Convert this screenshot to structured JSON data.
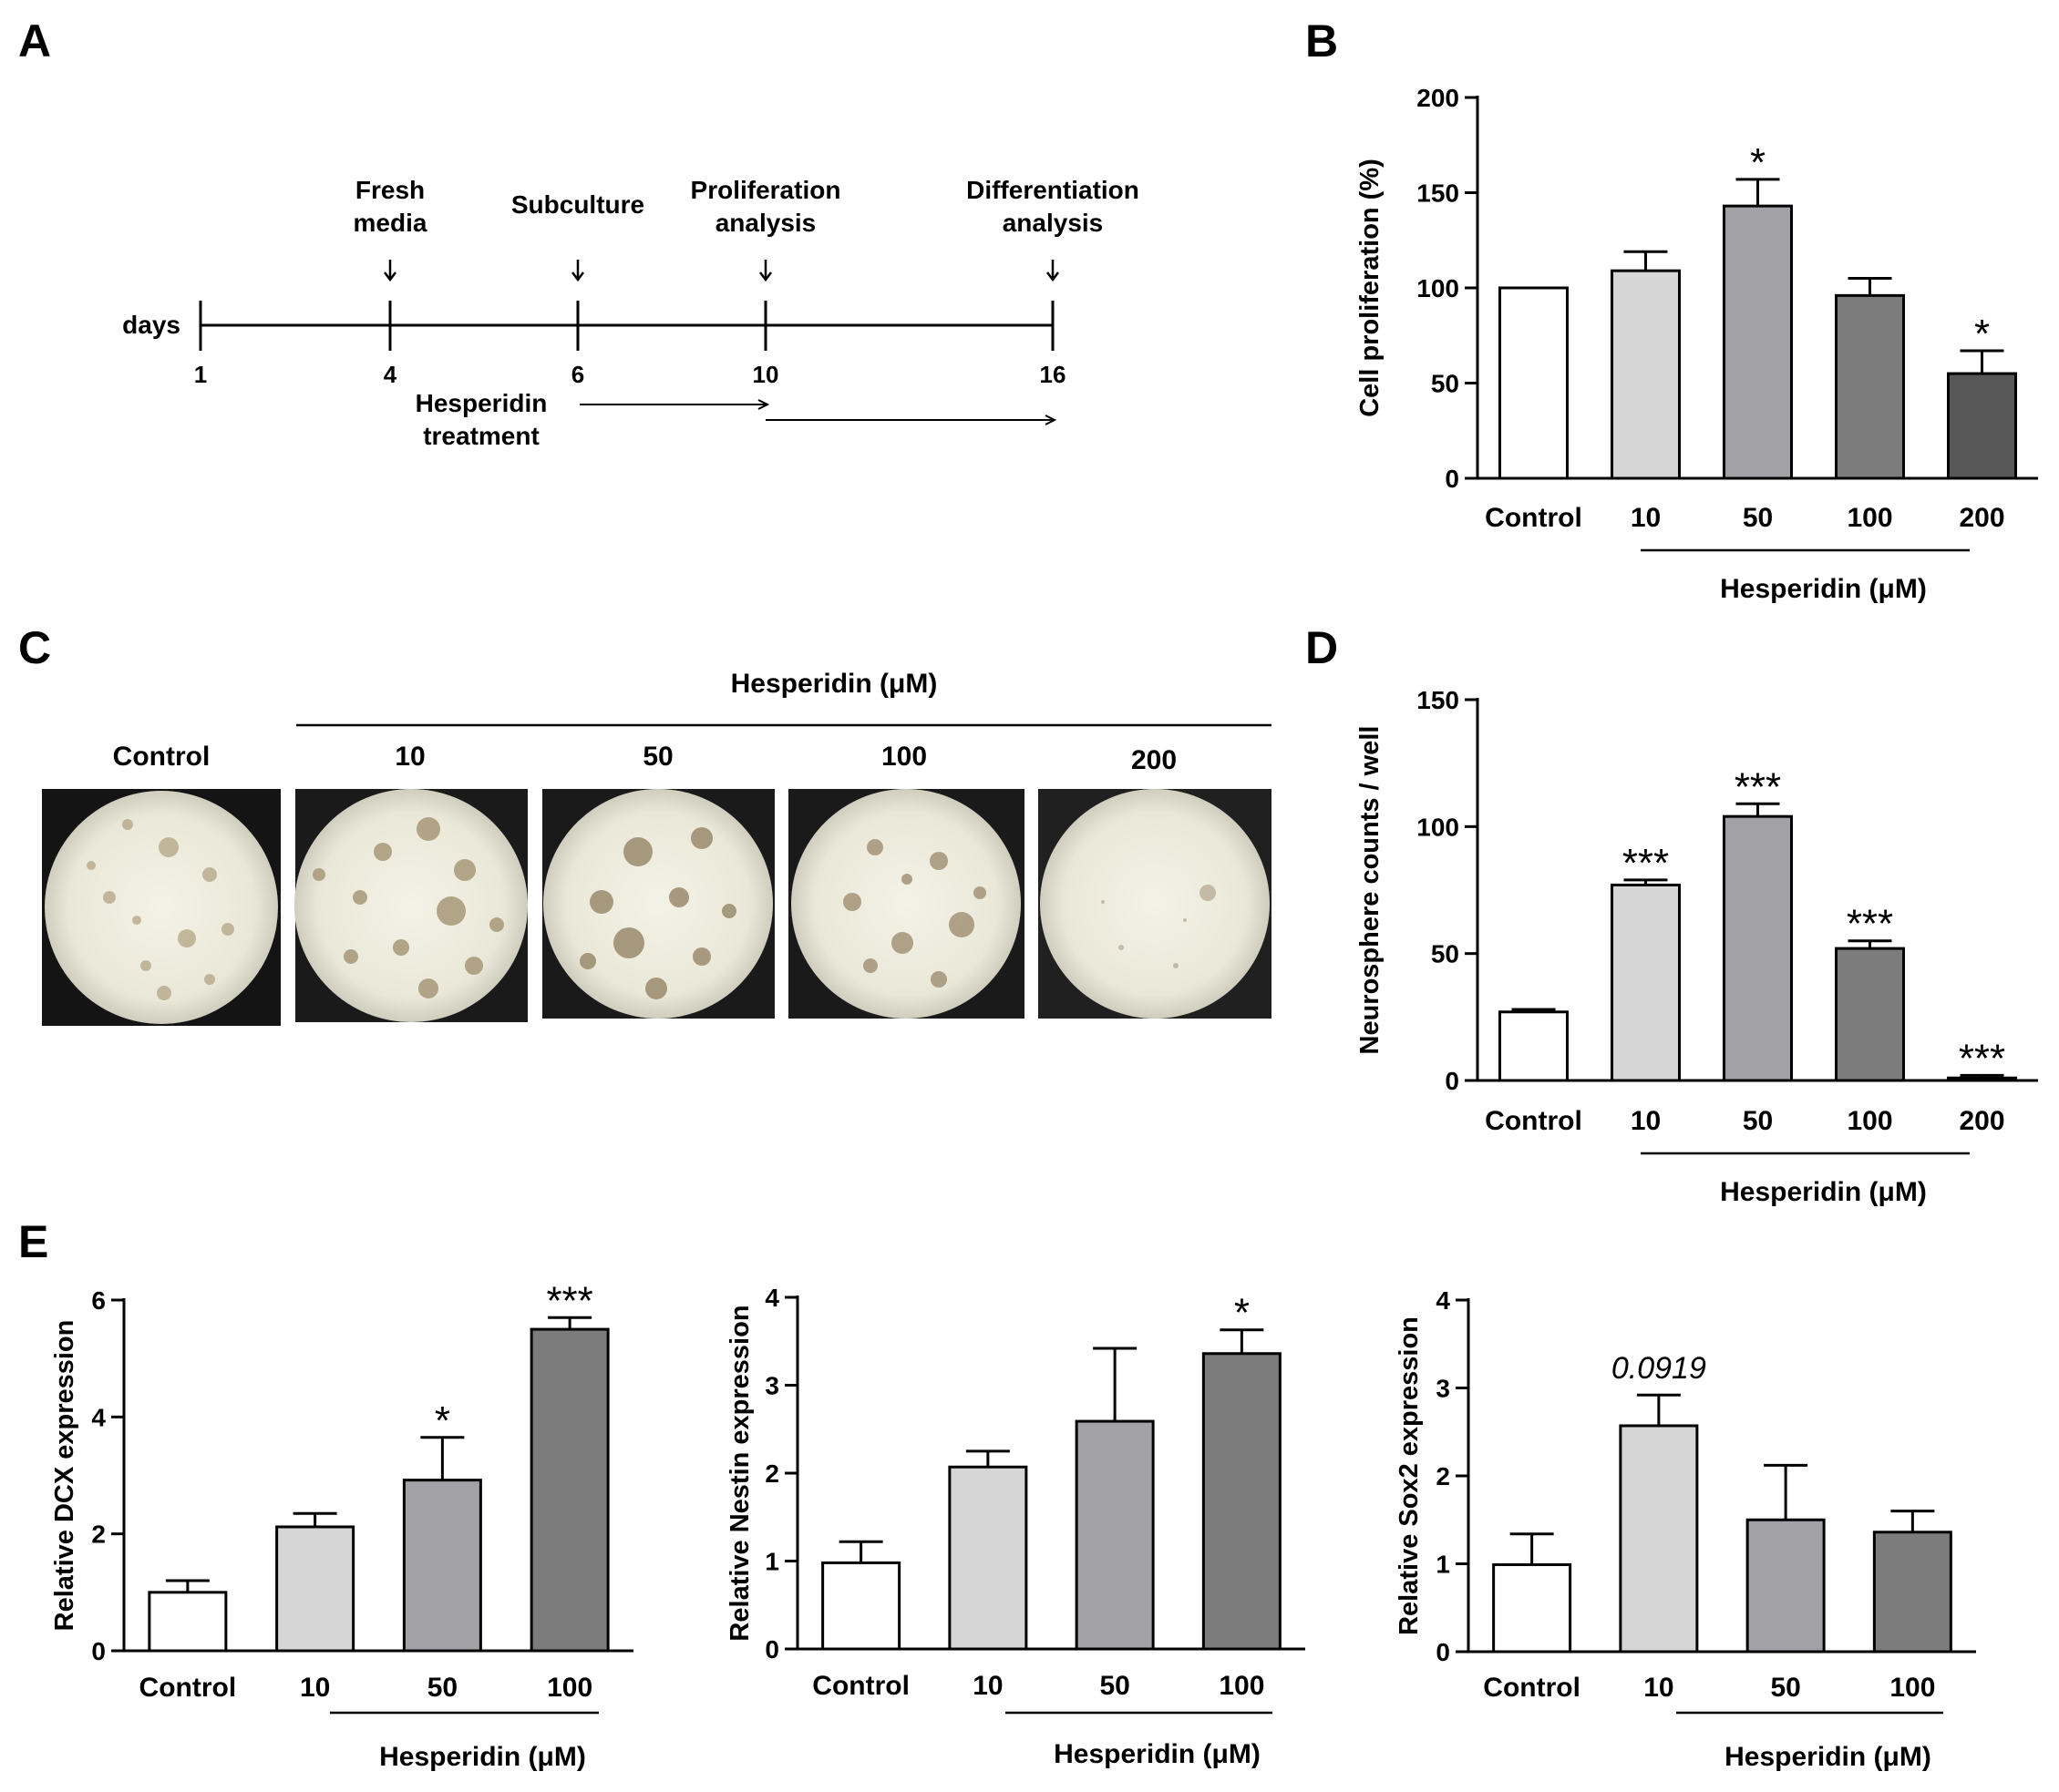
{
  "panels": {
    "A": "A",
    "B": "B",
    "C": "C",
    "D": "D",
    "E": "E"
  },
  "timeline": {
    "axis_label": "days",
    "days": [
      "1",
      "4",
      "6",
      "10",
      "16"
    ],
    "events": [
      {
        "day": "4",
        "label_line1": "Fresh",
        "label_line2": "media"
      },
      {
        "day": "6",
        "label_line1": "Subculture",
        "label_line2": ""
      },
      {
        "day": "10",
        "label_line1": "Proliferation",
        "label_line2": "analysis"
      },
      {
        "day": "16",
        "label_line1": "Differentiation",
        "label_line2": "analysis"
      }
    ],
    "treatment_line1": "Hesperidin",
    "treatment_line2": "treatment"
  },
  "images": {
    "group_label": "Hesperidin (μM)",
    "labels": [
      "Control",
      "10",
      "50",
      "100",
      "200"
    ]
  },
  "chart_data": [
    {
      "id": "B",
      "type": "bar",
      "categories": [
        "Control",
        "10",
        "50",
        "100",
        "200"
      ],
      "values": [
        100,
        109,
        143,
        96,
        55
      ],
      "errors": [
        0,
        10,
        14,
        9,
        12
      ],
      "significance": [
        "",
        "",
        "*",
        "",
        "*"
      ],
      "ylabel": "Cell proliferation (%)",
      "xlabel": "Hesperidin (μM)",
      "ylim": [
        0,
        200
      ],
      "yticks": [
        0,
        50,
        100,
        150,
        200
      ],
      "colors": [
        "#ffffff",
        "#d6d6d6",
        "#a2a2a6",
        "#7c7c7c",
        "#575757"
      ]
    },
    {
      "id": "D",
      "type": "bar",
      "categories": [
        "Control",
        "10",
        "50",
        "100",
        "200"
      ],
      "values": [
        27,
        77,
        104,
        52,
        1
      ],
      "errors": [
        1,
        2,
        5,
        3,
        1
      ],
      "significance": [
        "",
        "***",
        "***",
        "***",
        "***"
      ],
      "ylabel": "Neurosphere counts / well",
      "xlabel": "Hesperidin (μM)",
      "ylim": [
        0,
        150
      ],
      "yticks": [
        0,
        50,
        100,
        150
      ],
      "colors": [
        "#ffffff",
        "#d6d6d6",
        "#a2a2a6",
        "#7c7c7c",
        "#575757"
      ]
    },
    {
      "id": "E1",
      "type": "bar",
      "categories": [
        "Control",
        "10",
        "50",
        "100"
      ],
      "values": [
        1.0,
        2.12,
        2.92,
        5.5
      ],
      "errors": [
        0.2,
        0.23,
        0.73,
        0.2
      ],
      "significance": [
        "",
        "",
        "*",
        "***"
      ],
      "ylabel": "Relative DCX expression",
      "xlabel": "Hesperidin (μM)",
      "ylim": [
        0,
        6
      ],
      "yticks": [
        0,
        2,
        4,
        6
      ],
      "colors": [
        "#ffffff",
        "#d6d6d6",
        "#a2a2a6",
        "#7c7c7c"
      ]
    },
    {
      "id": "E2",
      "type": "bar",
      "categories": [
        "Control",
        "10",
        "50",
        "100"
      ],
      "values": [
        0.98,
        2.07,
        2.59,
        3.36
      ],
      "errors": [
        0.24,
        0.18,
        0.83,
        0.27
      ],
      "significance": [
        "",
        "",
        "",
        "*"
      ],
      "ylabel": "Relative Nestin expression",
      "xlabel": "Hesperidin (μM)",
      "ylim": [
        0,
        4
      ],
      "yticks": [
        0,
        1,
        2,
        3,
        4
      ],
      "colors": [
        "#ffffff",
        "#d6d6d6",
        "#a2a2a6",
        "#7c7c7c"
      ]
    },
    {
      "id": "E3",
      "type": "bar",
      "categories": [
        "Control",
        "10",
        "50",
        "100"
      ],
      "values": [
        0.99,
        2.57,
        1.5,
        1.36
      ],
      "errors": [
        0.35,
        0.35,
        0.62,
        0.24
      ],
      "significance": [
        "",
        "0.0919",
        "",
        ""
      ],
      "ylabel": "Relative Sox2 expression",
      "xlabel": "Hesperidin (μM)",
      "ylim": [
        0,
        4
      ],
      "yticks": [
        0,
        1,
        2,
        3,
        4
      ],
      "colors": [
        "#ffffff",
        "#d6d6d6",
        "#a2a2a6",
        "#7c7c7c"
      ]
    }
  ]
}
